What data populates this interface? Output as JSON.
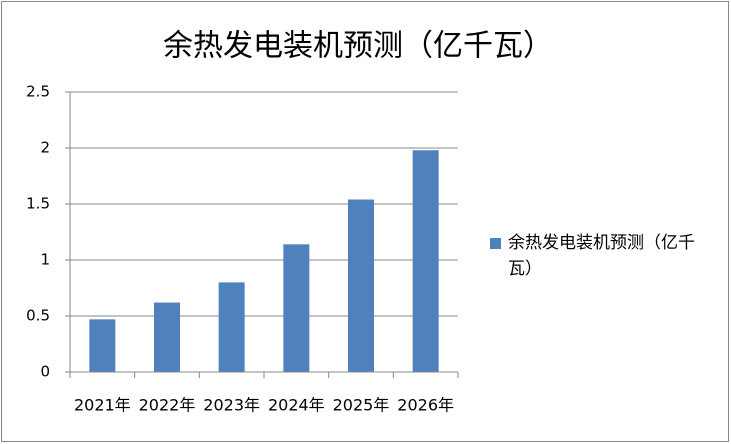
{
  "chart_data": {
    "type": "bar",
    "title": "余热发电装机预测（亿千瓦）",
    "categories": [
      "2021年",
      "2022年",
      "2023年",
      "2024年",
      "2025年",
      "2026年"
    ],
    "series": [
      {
        "name": "余热发电装机预测（亿千瓦）",
        "color": "#4f81bd",
        "values": [
          0.47,
          0.62,
          0.8,
          1.14,
          1.54,
          1.98
        ]
      }
    ],
    "ylim": [
      0,
      2.5
    ],
    "yticks": [
      0,
      0.5,
      1,
      1.5,
      2,
      2.5
    ],
    "grid": true,
    "legend": "right"
  }
}
